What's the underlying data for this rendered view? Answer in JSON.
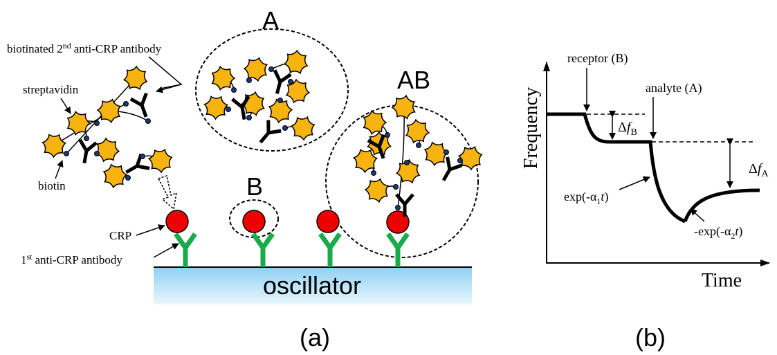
{
  "panel_a": {
    "secondary_antibody": {
      "text": "biotinated 2",
      "sup": "nd",
      "rest": "anti-CRP antibody"
    },
    "streptavidin": "streptavidin",
    "biotin": "biotin",
    "crp": "CRP",
    "primary_antibody": {
      "text": "1",
      "sup": "st",
      "rest": "anti-CRP antibody"
    },
    "complexes": [
      "A",
      "B",
      "AB"
    ],
    "substrate": "oscillator",
    "caption": "(a)"
  },
  "panel_b": {
    "y_axis": "Frequency",
    "x_axis": "Time",
    "receptor": "receptor (B)",
    "analyte": "analyte (A)",
    "delta_b": {
      "symbol": "Δ",
      "var": "f",
      "sub": "B"
    },
    "delta_a": {
      "symbol": "Δ",
      "var": "f",
      "sub": "A"
    },
    "exp1": {
      "pre": "exp(-α",
      "sub": "1",
      "var": "t",
      "post": ")"
    },
    "exp2": {
      "pre": "-exp(-α",
      "sub": "2",
      "var": "t",
      "post": ")"
    },
    "caption": "(b)"
  }
}
